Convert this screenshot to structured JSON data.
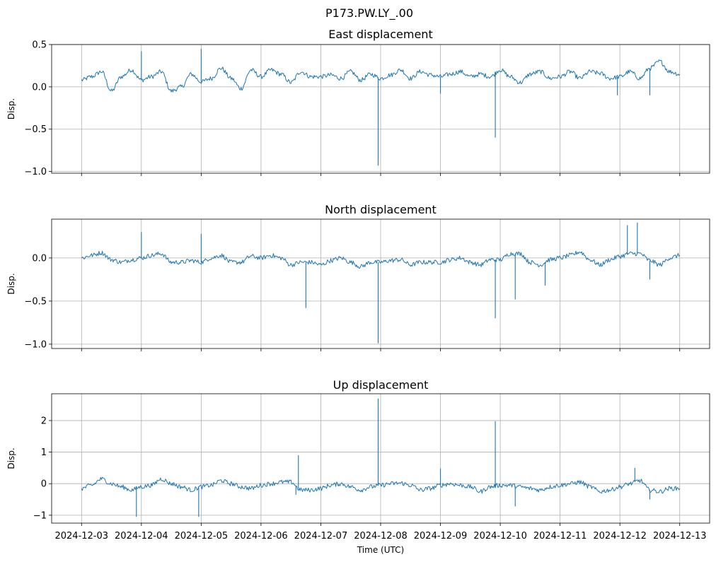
{
  "figure": {
    "suptitle": "P173.PW.LY_.00",
    "xlabel": "Time (UTC)"
  },
  "chart_data": [
    {
      "type": "line",
      "title": "East displacement",
      "ylabel": "Disp.",
      "ylim": [
        -1.02,
        0.5
      ],
      "yticks": [
        0.5,
        0.0,
        -0.5,
        -1.0
      ],
      "ytick_labels": [
        "0.5",
        "0.0",
        "−0.5",
        "−1.0"
      ],
      "xlim": [
        "2024-12-02T12:00",
        "2024-12-13T12:00"
      ],
      "xticks": [
        "2024-12-03",
        "2024-12-04",
        "2024-12-05",
        "2024-12-06",
        "2024-12-07",
        "2024-12-08",
        "2024-12-09",
        "2024-12-10",
        "2024-12-11",
        "2024-12-12",
        "2024-12-13"
      ],
      "xtick_labels_visible": false,
      "grid": true,
      "color": "#1f77b4",
      "series": [
        {
          "x": [
            "2024-12-03T00:00",
            "2024-12-03T04:00",
            "2024-12-03T08:00",
            "2024-12-03T12:00",
            "2024-12-03T16:00",
            "2024-12-03T20:00",
            "2024-12-04T00:00",
            "2024-12-04T04:00",
            "2024-12-04T08:00",
            "2024-12-04T12:00",
            "2024-12-04T16:00",
            "2024-12-04T20:00",
            "2024-12-05T00:00",
            "2024-12-05T04:00",
            "2024-12-05T08:00",
            "2024-12-05T12:00",
            "2024-12-05T16:00",
            "2024-12-05T20:00",
            "2024-12-06T00:00",
            "2024-12-06T04:00",
            "2024-12-06T08:00",
            "2024-12-06T12:00",
            "2024-12-06T16:00",
            "2024-12-06T20:00",
            "2024-12-07T00:00",
            "2024-12-07T04:00",
            "2024-12-07T08:00",
            "2024-12-07T12:00",
            "2024-12-07T16:00",
            "2024-12-07T20:00",
            "2024-12-08T00:00",
            "2024-12-08T04:00",
            "2024-12-08T08:00",
            "2024-12-08T12:00",
            "2024-12-08T16:00",
            "2024-12-08T20:00",
            "2024-12-09T00:00",
            "2024-12-09T04:00",
            "2024-12-09T08:00",
            "2024-12-09T12:00",
            "2024-12-09T16:00",
            "2024-12-09T20:00",
            "2024-12-10T00:00",
            "2024-12-10T04:00",
            "2024-12-10T08:00",
            "2024-12-10T12:00",
            "2024-12-10T16:00",
            "2024-12-10T20:00",
            "2024-12-11T00:00",
            "2024-12-11T04:00",
            "2024-12-11T08:00",
            "2024-12-11T12:00",
            "2024-12-11T16:00",
            "2024-12-11T20:00",
            "2024-12-12T00:00",
            "2024-12-12T04:00",
            "2024-12-12T08:00",
            "2024-12-12T12:00",
            "2024-12-12T16:00",
            "2024-12-12T20:00",
            "2024-12-13T00:00"
          ],
          "y": [
            0.08,
            0.12,
            0.18,
            -0.05,
            0.12,
            0.2,
            0.08,
            0.12,
            0.18,
            -0.05,
            0.0,
            0.15,
            0.06,
            0.1,
            0.22,
            0.1,
            -0.02,
            0.2,
            0.12,
            0.2,
            0.15,
            0.05,
            0.18,
            0.12,
            0.12,
            0.14,
            0.1,
            0.18,
            0.08,
            0.15,
            0.1,
            0.14,
            0.2,
            0.1,
            0.18,
            0.14,
            0.12,
            0.15,
            0.18,
            0.12,
            0.15,
            0.12,
            0.2,
            0.12,
            0.05,
            0.15,
            0.18,
            0.1,
            0.12,
            0.18,
            0.1,
            0.18,
            0.16,
            0.1,
            0.12,
            0.18,
            0.1,
            0.22,
            0.3,
            0.18,
            0.15
          ]
        }
      ],
      "spikes": [
        {
          "x": "2024-12-04T00:00",
          "y": 0.42
        },
        {
          "x": "2024-12-05T00:00",
          "y": 0.45
        },
        {
          "x": "2024-12-07T23:00",
          "y": -0.93
        },
        {
          "x": "2024-12-09T00:00",
          "y": -0.08
        },
        {
          "x": "2024-12-09T22:00",
          "y": -0.6
        },
        {
          "x": "2024-12-11T23:00",
          "y": -0.1
        },
        {
          "x": "2024-12-12T12:00",
          "y": -0.1
        }
      ]
    },
    {
      "type": "line",
      "title": "North displacement",
      "ylabel": "Disp.",
      "ylim": [
        -1.05,
        0.45
      ],
      "yticks": [
        0.0,
        -0.5,
        -1.0
      ],
      "ytick_labels": [
        "0.0",
        "−0.5",
        "−1.0"
      ],
      "xlim": [
        "2024-12-02T12:00",
        "2024-12-13T12:00"
      ],
      "xticks": [
        "2024-12-03",
        "2024-12-04",
        "2024-12-05",
        "2024-12-06",
        "2024-12-07",
        "2024-12-08",
        "2024-12-09",
        "2024-12-10",
        "2024-12-11",
        "2024-12-12",
        "2024-12-13"
      ],
      "xtick_labels_visible": false,
      "grid": true,
      "color": "#1f77b4",
      "series": [
        {
          "x": [
            "2024-12-03T00:00",
            "2024-12-03T04:00",
            "2024-12-03T08:00",
            "2024-12-03T12:00",
            "2024-12-03T16:00",
            "2024-12-03T20:00",
            "2024-12-04T00:00",
            "2024-12-04T04:00",
            "2024-12-04T08:00",
            "2024-12-04T12:00",
            "2024-12-04T16:00",
            "2024-12-04T20:00",
            "2024-12-05T00:00",
            "2024-12-05T04:00",
            "2024-12-05T08:00",
            "2024-12-05T12:00",
            "2024-12-05T16:00",
            "2024-12-05T20:00",
            "2024-12-06T00:00",
            "2024-12-06T04:00",
            "2024-12-06T08:00",
            "2024-12-06T12:00",
            "2024-12-06T16:00",
            "2024-12-06T20:00",
            "2024-12-07T00:00",
            "2024-12-07T04:00",
            "2024-12-07T08:00",
            "2024-12-07T12:00",
            "2024-12-07T16:00",
            "2024-12-07T20:00",
            "2024-12-08T00:00",
            "2024-12-08T04:00",
            "2024-12-08T08:00",
            "2024-12-08T12:00",
            "2024-12-08T16:00",
            "2024-12-08T20:00",
            "2024-12-09T00:00",
            "2024-12-09T04:00",
            "2024-12-09T08:00",
            "2024-12-09T12:00",
            "2024-12-09T16:00",
            "2024-12-09T20:00",
            "2024-12-10T00:00",
            "2024-12-10T04:00",
            "2024-12-10T08:00",
            "2024-12-10T12:00",
            "2024-12-10T16:00",
            "2024-12-10T20:00",
            "2024-12-11T00:00",
            "2024-12-11T04:00",
            "2024-12-11T08:00",
            "2024-12-11T12:00",
            "2024-12-11T16:00",
            "2024-12-11T20:00",
            "2024-12-12T00:00",
            "2024-12-12T04:00",
            "2024-12-12T08:00",
            "2024-12-12T12:00",
            "2024-12-12T16:00",
            "2024-12-12T20:00",
            "2024-12-13T00:00"
          ],
          "y": [
            0.0,
            0.03,
            0.06,
            -0.02,
            -0.05,
            -0.02,
            0.0,
            0.03,
            0.05,
            -0.05,
            -0.05,
            -0.03,
            -0.05,
            0.0,
            0.03,
            -0.05,
            -0.05,
            0.02,
            0.0,
            0.03,
            0.0,
            -0.08,
            -0.05,
            -0.05,
            -0.08,
            -0.03,
            0.0,
            -0.05,
            -0.1,
            -0.05,
            -0.05,
            -0.03,
            -0.02,
            -0.08,
            -0.05,
            -0.05,
            -0.05,
            -0.02,
            0.0,
            -0.05,
            -0.08,
            -0.02,
            -0.02,
            0.05,
            0.05,
            -0.05,
            -0.08,
            -0.02,
            0.0,
            0.03,
            0.07,
            -0.02,
            -0.08,
            -0.02,
            0.02,
            0.05,
            0.05,
            -0.03,
            -0.08,
            0.0,
            0.03
          ]
        }
      ],
      "spikes": [
        {
          "x": "2024-12-04T00:00",
          "y": 0.3
        },
        {
          "x": "2024-12-05T00:00",
          "y": 0.28
        },
        {
          "x": "2024-12-06T18:00",
          "y": -0.58
        },
        {
          "x": "2024-12-07T23:00",
          "y": -0.99
        },
        {
          "x": "2024-12-09T22:00",
          "y": -0.7
        },
        {
          "x": "2024-12-10T06:00",
          "y": -0.48
        },
        {
          "x": "2024-12-10T18:00",
          "y": -0.32
        },
        {
          "x": "2024-12-12T03:00",
          "y": 0.38
        },
        {
          "x": "2024-12-12T07:00",
          "y": 0.41
        },
        {
          "x": "2024-12-12T12:00",
          "y": -0.25
        }
      ]
    },
    {
      "type": "line",
      "title": "Up displacement",
      "ylabel": "Disp.",
      "ylim": [
        -1.25,
        2.85
      ],
      "yticks": [
        2,
        1,
        0,
        -1
      ],
      "ytick_labels": [
        "2",
        "1",
        "0",
        "−1"
      ],
      "xlim": [
        "2024-12-02T12:00",
        "2024-12-13T12:00"
      ],
      "xticks": [
        "2024-12-03",
        "2024-12-04",
        "2024-12-05",
        "2024-12-06",
        "2024-12-07",
        "2024-12-08",
        "2024-12-09",
        "2024-12-10",
        "2024-12-11",
        "2024-12-12",
        "2024-12-13"
      ],
      "xtick_labels": [
        "2024-12-03",
        "2024-12-04",
        "2024-12-05",
        "2024-12-06",
        "2024-12-07",
        "2024-12-08",
        "2024-12-09",
        "2024-12-10",
        "2024-12-11",
        "2024-12-12",
        "2024-12-13"
      ],
      "xtick_labels_visible": true,
      "grid": true,
      "color": "#1f77b4",
      "series": [
        {
          "x": [
            "2024-12-03T00:00",
            "2024-12-03T04:00",
            "2024-12-03T08:00",
            "2024-12-03T12:00",
            "2024-12-03T16:00",
            "2024-12-03T20:00",
            "2024-12-04T00:00",
            "2024-12-04T04:00",
            "2024-12-04T08:00",
            "2024-12-04T12:00",
            "2024-12-04T16:00",
            "2024-12-04T20:00",
            "2024-12-05T00:00",
            "2024-12-05T04:00",
            "2024-12-05T08:00",
            "2024-12-05T12:00",
            "2024-12-05T16:00",
            "2024-12-05T20:00",
            "2024-12-06T00:00",
            "2024-12-06T04:00",
            "2024-12-06T08:00",
            "2024-12-06T12:00",
            "2024-12-06T16:00",
            "2024-12-06T20:00",
            "2024-12-07T00:00",
            "2024-12-07T04:00",
            "2024-12-07T08:00",
            "2024-12-07T12:00",
            "2024-12-07T16:00",
            "2024-12-07T20:00",
            "2024-12-08T00:00",
            "2024-12-08T04:00",
            "2024-12-08T08:00",
            "2024-12-08T12:00",
            "2024-12-08T16:00",
            "2024-12-08T20:00",
            "2024-12-09T00:00",
            "2024-12-09T04:00",
            "2024-12-09T08:00",
            "2024-12-09T12:00",
            "2024-12-09T16:00",
            "2024-12-09T20:00",
            "2024-12-10T00:00",
            "2024-12-10T04:00",
            "2024-12-10T08:00",
            "2024-12-10T12:00",
            "2024-12-10T16:00",
            "2024-12-10T20:00",
            "2024-12-11T00:00",
            "2024-12-11T04:00",
            "2024-12-11T08:00",
            "2024-12-11T12:00",
            "2024-12-11T16:00",
            "2024-12-11T20:00",
            "2024-12-12T00:00",
            "2024-12-12T04:00",
            "2024-12-12T08:00",
            "2024-12-12T12:00",
            "2024-12-12T16:00",
            "2024-12-12T20:00",
            "2024-12-13T00:00"
          ],
          "y": [
            -0.15,
            -0.05,
            0.15,
            0.0,
            -0.1,
            -0.2,
            -0.1,
            -0.05,
            0.15,
            0.0,
            -0.1,
            -0.2,
            -0.1,
            -0.05,
            0.1,
            0.0,
            -0.1,
            -0.15,
            -0.05,
            0.0,
            0.05,
            0.05,
            -0.2,
            -0.2,
            -0.15,
            -0.05,
            0.0,
            -0.1,
            -0.2,
            -0.1,
            -0.05,
            0.0,
            0.02,
            -0.05,
            -0.2,
            -0.15,
            -0.05,
            0.0,
            -0.05,
            -0.1,
            -0.25,
            -0.1,
            -0.05,
            -0.05,
            -0.1,
            -0.15,
            -0.2,
            -0.1,
            -0.05,
            0.0,
            0.05,
            -0.1,
            -0.25,
            -0.2,
            -0.1,
            0.0,
            0.1,
            -0.2,
            -0.25,
            -0.15,
            -0.15
          ]
        }
      ],
      "spikes": [
        {
          "x": "2024-12-03T22:00",
          "y": -1.05
        },
        {
          "x": "2024-12-04T23:00",
          "y": -1.05
        },
        {
          "x": "2024-12-06T14:00",
          "y": -0.35
        },
        {
          "x": "2024-12-06T15:00",
          "y": 0.9
        },
        {
          "x": "2024-12-07T23:00",
          "y": 2.7
        },
        {
          "x": "2024-12-09T00:00",
          "y": 0.48
        },
        {
          "x": "2024-12-09T22:00",
          "y": 1.98
        },
        {
          "x": "2024-12-10T06:00",
          "y": -0.72
        },
        {
          "x": "2024-12-12T06:00",
          "y": 0.5
        },
        {
          "x": "2024-12-12T12:00",
          "y": -0.5
        }
      ]
    }
  ]
}
